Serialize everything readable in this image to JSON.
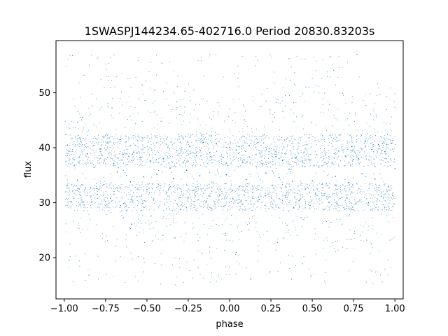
{
  "chart_data": {
    "type": "scatter",
    "title": "1SWASPJ144234.65-402716.0 Period 20830.83203s",
    "xlabel": "phase",
    "ylabel": "flux",
    "xlim": [
      -1.05,
      1.05
    ],
    "ylim": [
      12.5,
      59.5
    ],
    "xticks": [
      -1.0,
      -0.75,
      -0.5,
      -0.25,
      0.0,
      0.25,
      0.5,
      0.75,
      1.0
    ],
    "xtick_labels": [
      "−1.00",
      "−0.75",
      "−0.50",
      "−0.25",
      "0.00",
      "0.25",
      "0.50",
      "0.75",
      "1.00"
    ],
    "yticks": [
      20,
      30,
      40,
      50
    ],
    "ytick_labels": [
      "20",
      "30",
      "40",
      "50"
    ],
    "grid": false,
    "marker_color": "#1f77b4",
    "series": [
      {
        "description_of_shape": "dense band between ~28 and ~43 flux across phase -1 to 1, sparse outliers 15–57",
        "values": [
          [
            -0.98,
            40.5
          ],
          [
            -0.96,
            30.2
          ],
          [
            -0.94,
            37.8
          ],
          [
            -0.92,
            34.1
          ],
          [
            -0.9,
            41.2
          ],
          [
            -0.88,
            29.6
          ],
          [
            -0.86,
            38.9
          ],
          [
            -0.84,
            32.7
          ],
          [
            -0.82,
            36.4
          ],
          [
            -0.8,
            31.5
          ],
          [
            -0.78,
            39.8
          ],
          [
            -0.76,
            33.3
          ],
          [
            -0.74,
            40.9
          ],
          [
            -0.72,
            30.8
          ],
          [
            -0.7,
            37.1
          ],
          [
            -0.68,
            35.6
          ],
          [
            -0.66,
            41.5
          ],
          [
            -0.64,
            29.9
          ],
          [
            -0.62,
            36.9
          ],
          [
            -0.6,
            33.8
          ],
          [
            -0.58,
            39.2
          ],
          [
            -0.56,
            31.1
          ],
          [
            -0.54,
            38.3
          ],
          [
            -0.52,
            34.7
          ],
          [
            -0.5,
            32.4
          ],
          [
            -0.48,
            37.6
          ],
          [
            -0.46,
            30.5
          ],
          [
            -0.44,
            35.2
          ],
          [
            -0.42,
            33.1
          ],
          [
            -0.4,
            38.0
          ],
          [
            -0.38,
            31.8
          ],
          [
            -0.36,
            36.3
          ],
          [
            -0.34,
            34.4
          ],
          [
            -0.32,
            39.5
          ],
          [
            -0.3,
            30.9
          ],
          [
            -0.28,
            37.4
          ],
          [
            -0.26,
            35.9
          ],
          [
            -0.24,
            40.3
          ],
          [
            -0.22,
            32.2
          ],
          [
            -0.2,
            38.6
          ],
          [
            -0.18,
            34.9
          ],
          [
            -0.16,
            41.0
          ],
          [
            -0.14,
            30.3
          ],
          [
            -0.12,
            39.1
          ],
          [
            -0.1,
            33.6
          ],
          [
            -0.08,
            40.7
          ],
          [
            -0.06,
            31.4
          ],
          [
            -0.04,
            38.2
          ],
          [
            -0.02,
            35.1
          ],
          [
            0.0,
            40.1
          ],
          [
            0.02,
            30.7
          ],
          [
            0.04,
            39.6
          ],
          [
            0.06,
            32.9
          ],
          [
            0.08,
            37.3
          ],
          [
            0.1,
            34.2
          ],
          [
            0.12,
            40.4
          ],
          [
            0.14,
            31.9
          ],
          [
            0.16,
            38.8
          ],
          [
            0.18,
            30.6
          ],
          [
            0.2,
            37.0
          ],
          [
            0.22,
            35.4
          ],
          [
            0.24,
            39.9
          ],
          [
            0.26,
            33.2
          ],
          [
            0.28,
            38.4
          ],
          [
            0.3,
            34.6
          ],
          [
            0.32,
            37.7
          ],
          [
            0.34,
            31.3
          ],
          [
            0.36,
            36.1
          ],
          [
            0.38,
            33.9
          ],
          [
            0.4,
            38.1
          ],
          [
            0.42,
            30.4
          ],
          [
            0.44,
            36.7
          ],
          [
            0.46,
            32.5
          ],
          [
            0.48,
            37.9
          ],
          [
            0.5,
            34.0
          ],
          [
            0.52,
            31.6
          ],
          [
            0.54,
            36.5
          ],
          [
            0.56,
            33.4
          ],
          [
            0.58,
            38.7
          ],
          [
            0.6,
            30.1
          ],
          [
            0.62,
            37.2
          ],
          [
            0.64,
            34.8
          ],
          [
            0.66,
            39.4
          ],
          [
            0.68,
            31.0
          ],
          [
            0.7,
            38.5
          ],
          [
            0.72,
            33.7
          ],
          [
            0.74,
            40.2
          ],
          [
            0.76,
            29.8
          ],
          [
            0.78,
            38.0
          ],
          [
            0.8,
            35.3
          ],
          [
            0.82,
            41.1
          ],
          [
            0.84,
            30.0
          ],
          [
            0.86,
            39.7
          ],
          [
            0.88,
            34.3
          ],
          [
            0.9,
            40.6
          ],
          [
            0.92,
            31.2
          ],
          [
            0.94,
            39.3
          ],
          [
            0.96,
            33.0
          ],
          [
            0.98,
            40.8
          ],
          [
            1.0,
            36.2
          ]
        ]
      }
    ],
    "outliers": [
      [
        -0.95,
        56.8
      ],
      [
        -0.88,
        53.2
      ],
      [
        -0.72,
        51.0
      ],
      [
        -0.55,
        48.9
      ],
      [
        -0.41,
        55.4
      ],
      [
        -0.27,
        50.3
      ],
      [
        -0.12,
        56.9
      ],
      [
        0.05,
        52.7
      ],
      [
        0.22,
        48.5
      ],
      [
        0.36,
        56.2
      ],
      [
        0.48,
        50.9
      ],
      [
        0.63,
        54.1
      ],
      [
        0.77,
        57.0
      ],
      [
        0.91,
        49.7
      ],
      [
        -0.83,
        47.6
      ],
      [
        -0.97,
        19.5
      ],
      [
        -0.85,
        16.8
      ],
      [
        -0.69,
        22.1
      ],
      [
        -0.52,
        17.4
      ],
      [
        -0.33,
        23.6
      ],
      [
        -0.19,
        18.2
      ],
      [
        -0.03,
        21.3
      ],
      [
        0.13,
        16.1
      ],
      [
        0.29,
        22.8
      ],
      [
        0.44,
        18.9
      ],
      [
        0.58,
        15.4
      ],
      [
        0.71,
        21.7
      ],
      [
        0.86,
        17.6
      ],
      [
        0.97,
        23.2
      ],
      [
        -0.6,
        25.3
      ],
      [
        0.35,
        25.9
      ],
      [
        -0.08,
        15.7
      ],
      [
        0.68,
        26.1
      ],
      [
        -0.92,
        44.6
      ],
      [
        0.09,
        45.1
      ]
    ]
  }
}
